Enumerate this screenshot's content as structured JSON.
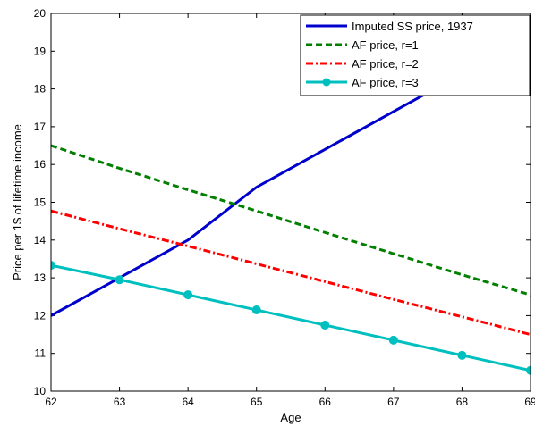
{
  "chart_data": {
    "type": "line",
    "title": "",
    "xlabel": "Age",
    "ylabel": "Price per 1$ of lifetime income",
    "xlim": [
      62,
      69
    ],
    "ylim": [
      10,
      20
    ],
    "xticks": [
      62,
      63,
      64,
      65,
      66,
      67,
      68,
      69
    ],
    "yticks": [
      10,
      11,
      12,
      13,
      14,
      15,
      16,
      17,
      18,
      19,
      20
    ],
    "grid": false,
    "legend_position": "top-right",
    "series": [
      {
        "name": "Imputed SS price, 1937",
        "color": "#0000cc",
        "style": "solid",
        "marker": "none",
        "x": [
          62,
          63,
          64,
          65,
          66,
          67,
          68,
          69
        ],
        "y": [
          12.0,
          13.0,
          14.0,
          15.4,
          16.4,
          17.4,
          18.4,
          19.4
        ]
      },
      {
        "name": "AF price, r=1",
        "color": "#007f00",
        "style": "dashed",
        "marker": "none",
        "x": [
          62,
          63,
          64,
          65,
          66,
          67,
          68,
          69
        ],
        "y": [
          16.5,
          15.9,
          15.33,
          14.77,
          14.2,
          13.64,
          13.08,
          12.55
        ]
      },
      {
        "name": "AF price, r=2",
        "color": "#ff0000",
        "style": "dashdot",
        "marker": "none",
        "x": [
          62,
          63,
          64,
          65,
          66,
          67,
          68,
          69
        ],
        "y": [
          14.77,
          14.3,
          13.84,
          13.37,
          12.9,
          12.43,
          11.97,
          11.5
        ]
      },
      {
        "name": "AF price, r=3",
        "color": "#00bfbf",
        "style": "solid",
        "marker": "circle",
        "x": [
          62,
          63,
          64,
          65,
          66,
          67,
          68,
          69
        ],
        "y": [
          13.33,
          12.95,
          12.55,
          12.15,
          11.75,
          11.35,
          10.95,
          10.55
        ]
      }
    ]
  }
}
